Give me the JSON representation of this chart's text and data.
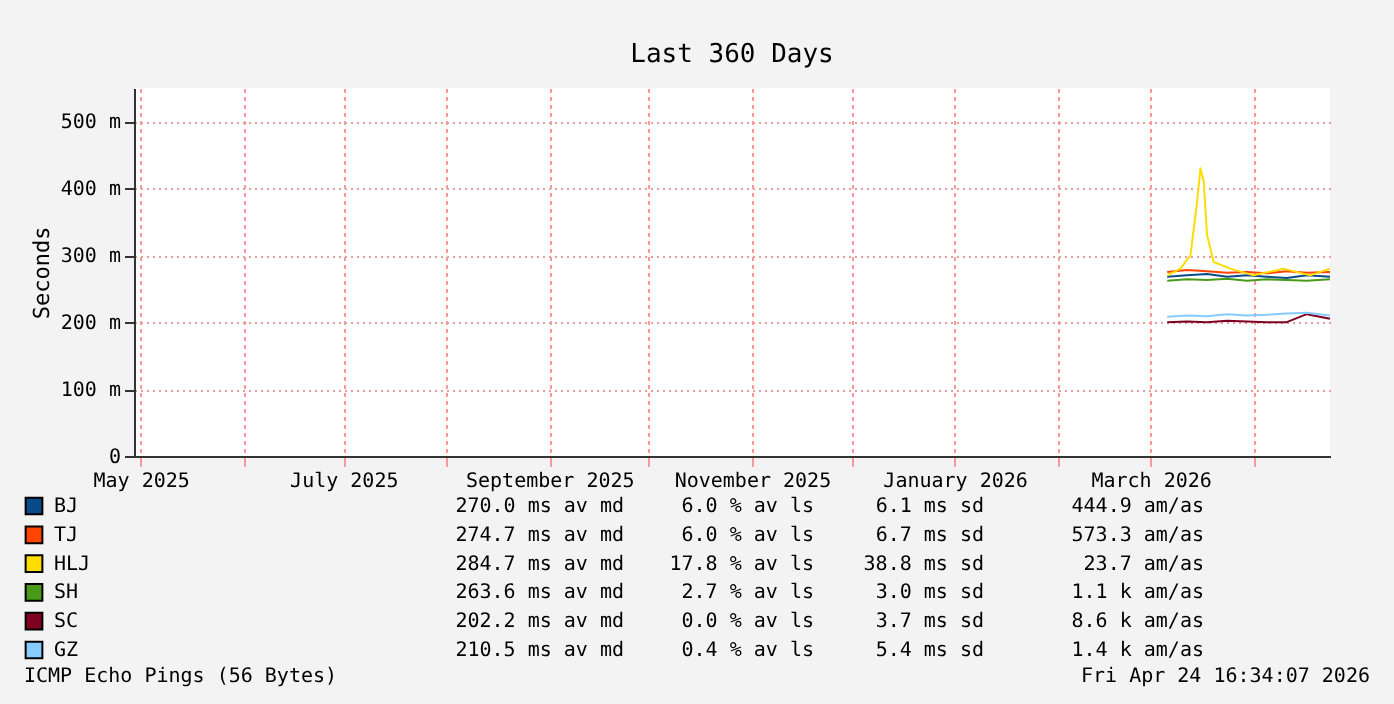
{
  "chart_data": {
    "type": "line",
    "title": "Last 360 Days",
    "ylabel": "Seconds",
    "xlim": [
      "2025-04-29",
      "2026-04-24"
    ],
    "xticks": [
      {
        "value": "2025-05-01",
        "label": "May 2025"
      },
      {
        "value": "2025-06-01",
        "label": null
      },
      {
        "value": "2025-07-01",
        "label": "July 2025"
      },
      {
        "value": "2025-08-01",
        "label": null
      },
      {
        "value": "2025-09-01",
        "label": "September 2025"
      },
      {
        "value": "2025-10-01",
        "label": null
      },
      {
        "value": "2025-11-01",
        "label": "November 2025"
      },
      {
        "value": "2025-12-01",
        "label": null
      },
      {
        "value": "2026-01-01",
        "label": "January 2026"
      },
      {
        "value": "2026-02-01",
        "label": null
      },
      {
        "value": "2026-03-01",
        "label": "March 2026"
      },
      {
        "value": "2026-04-01",
        "label": null
      }
    ],
    "ylim": [
      0,
      550
    ],
    "yticks": [
      0,
      {
        "value": 100,
        "label": "100 m"
      },
      {
        "value": 200,
        "label": "200 m"
      },
      {
        "value": 300,
        "label": "300 m"
      },
      {
        "value": 400,
        "label": "400 m"
      },
      {
        "value": 500,
        "label": "500 m"
      }
    ],
    "grid": true,
    "legend": "bottom",
    "marker": "none",
    "line_style": "solid",
    "x": [
      "2026-03-06",
      "2026-03-12",
      "2026-03-18",
      "2026-03-24",
      "2026-03-30",
      "2026-04-05",
      "2026-04-11",
      "2026-04-17",
      "2026-04-24"
    ],
    "series": [
      {
        "name": "BJ",
        "color": "#0b4a8a",
        "values": [
          268,
          270,
          272,
          268,
          270,
          268,
          266,
          270,
          268
        ]
      },
      {
        "name": "TJ",
        "color": "#ff4400",
        "values": [
          275,
          278,
          276,
          274,
          275,
          273,
          276,
          274,
          275
        ]
      },
      {
        "name": "HLJ",
        "color": "#ffdd00",
        "x": [
          "2026-03-06",
          "2026-03-10",
          "2026-03-13",
          "2026-03-15",
          "2026-03-16",
          "2026-03-17",
          "2026-03-18",
          "2026-03-20",
          "2026-03-25",
          "2026-04-01",
          "2026-04-10",
          "2026-04-18",
          "2026-04-24"
        ],
        "values": [
          270,
          280,
          300,
          380,
          430,
          410,
          330,
          290,
          280,
          270,
          280,
          270,
          280
        ]
      },
      {
        "name": "SH",
        "color": "#4a9a1a",
        "values": [
          262,
          264,
          263,
          265,
          262,
          264,
          263,
          262,
          264
        ]
      },
      {
        "name": "SC",
        "color": "#800020",
        "values": [
          200,
          201,
          200,
          202,
          201,
          200,
          200,
          212,
          205
        ]
      },
      {
        "name": "GZ",
        "color": "#88ccff",
        "values": [
          208,
          210,
          209,
          212,
          210,
          211,
          213,
          214,
          210
        ]
      }
    ],
    "annotations": [
      "270.0 ms av md",
      "6.0 % av ls",
      "6.1 ms sd",
      "444.9   am/as",
      "274.7 ms av md",
      "6.0 % av ls",
      "6.7 ms sd",
      "573.3   am/as",
      "284.7 ms av md",
      "17.8 % av ls",
      "38.8 ms sd",
      "23.7   am/as",
      "263.6 ms av md",
      "2.7 % av ls",
      "3.0 ms sd",
      "1.1 k am/as",
      "202.2 ms av md",
      "0.0 % av ls",
      "3.7 ms sd",
      "8.6 k am/as",
      "210.5 ms av md",
      "0.4 % av ls",
      "5.4 ms sd",
      "1.4 k am/as",
      "ICMP Echo Pings (56 Bytes)",
      "Fri Apr 24 16:34:07 2026"
    ]
  }
}
